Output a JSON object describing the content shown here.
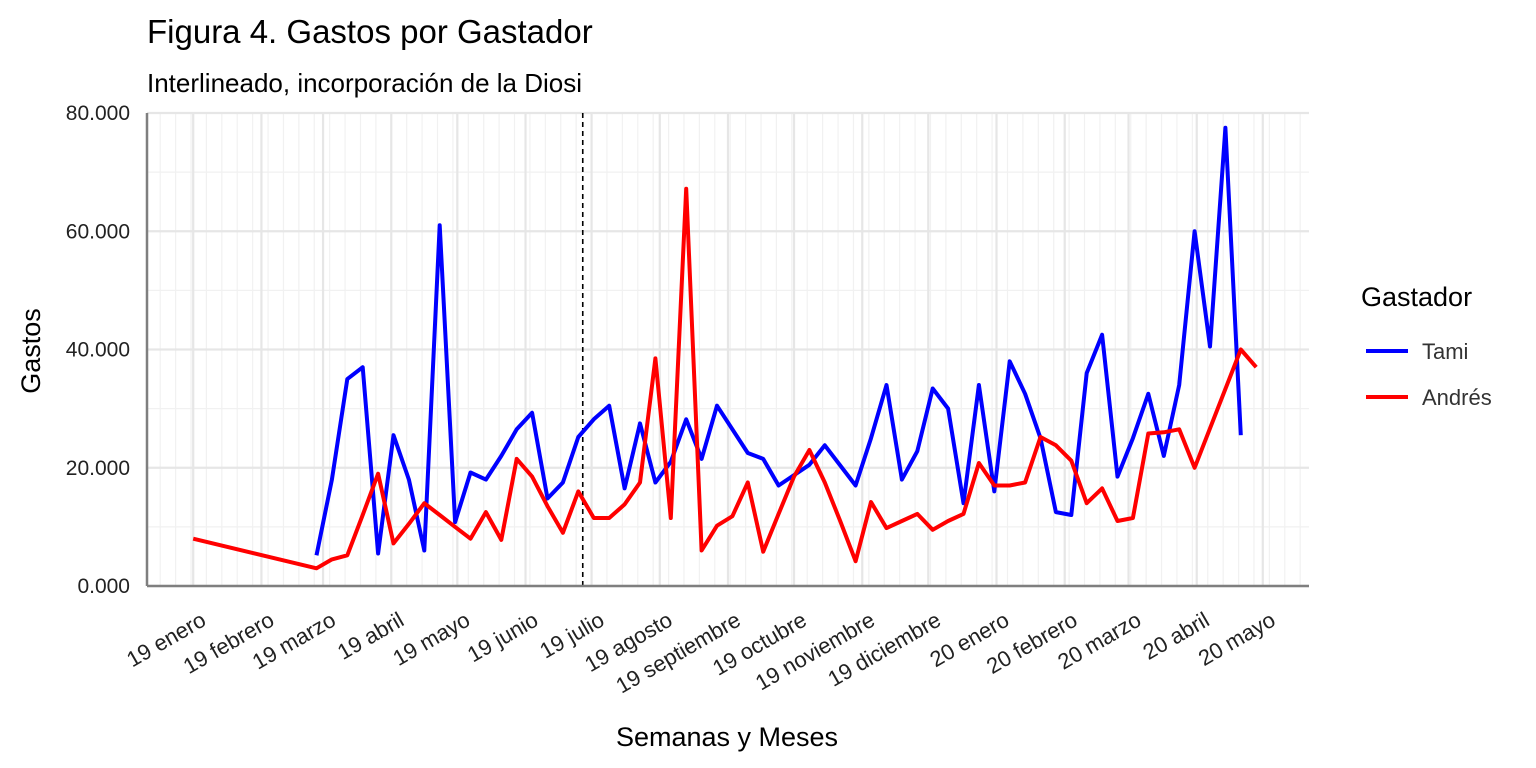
{
  "chart_data": {
    "type": "line",
    "title": "Figura 4. Gastos por Gastador",
    "subtitle": "Interlineado, incorporación de la Diosi",
    "xlabel": "Semanas y Meses",
    "ylabel": "Gastos",
    "x_axis": "date",
    "xlim": [
      "2018-12-11",
      "2020-05-22"
    ],
    "ylim": [
      0,
      80000
    ],
    "y_ticks": [
      0,
      20000,
      40000,
      60000,
      80000
    ],
    "y_tick_labels": [
      "0.000",
      "20.000",
      "40.000",
      "60.000",
      "80.000"
    ],
    "x_ticks": [
      "2019-01-01",
      "2019-02-01",
      "2019-03-01",
      "2019-04-01",
      "2019-05-01",
      "2019-06-01",
      "2019-07-01",
      "2019-08-01",
      "2019-09-01",
      "2019-10-01",
      "2019-11-01",
      "2019-12-01",
      "2020-01-01",
      "2020-02-01",
      "2020-03-01",
      "2020-04-01",
      "2020-05-01"
    ],
    "x_tick_labels": [
      "19 enero",
      "19 febrero",
      "19 marzo",
      "19 abril",
      "19 mayo",
      "19 junio",
      "19 julio",
      "19 agosto",
      "19 septiembre",
      "19 octubre",
      "19 noviembre",
      "19 diciembre",
      "20 enero",
      "20 febrero",
      "20 marzo",
      "20 abril",
      "20 mayo"
    ],
    "vline": "2019-06-27",
    "grid": true,
    "legend": {
      "title": "Gastador",
      "position": "right"
    },
    "series": [
      {
        "name": "Tami",
        "color": "#0000ff",
        "x": [
          "2019-02-26",
          "2019-03-05",
          "2019-03-12",
          "2019-03-19",
          "2019-03-26",
          "2019-04-02",
          "2019-04-09",
          "2019-04-16",
          "2019-04-23",
          "2019-04-30",
          "2019-05-07",
          "2019-05-14",
          "2019-05-21",
          "2019-05-28",
          "2019-06-04",
          "2019-06-11",
          "2019-06-18",
          "2019-06-25",
          "2019-07-02",
          "2019-07-09",
          "2019-07-16",
          "2019-07-23",
          "2019-07-30",
          "2019-08-06",
          "2019-08-13",
          "2019-08-20",
          "2019-08-27",
          "2019-09-10",
          "2019-09-17",
          "2019-09-24",
          "2019-10-08",
          "2019-10-15",
          "2019-10-29",
          "2019-11-05",
          "2019-11-12",
          "2019-11-19",
          "2019-11-26",
          "2019-12-03",
          "2019-12-10",
          "2019-12-17",
          "2019-12-24",
          "2019-12-31",
          "2020-01-07",
          "2020-01-14",
          "2020-01-21",
          "2020-01-28",
          "2020-02-04",
          "2020-02-11",
          "2020-02-18",
          "2020-02-25",
          "2020-03-03",
          "2020-03-10",
          "2020-03-17",
          "2020-03-24",
          "2020-03-31",
          "2020-04-07",
          "2020-04-14",
          "2020-04-21"
        ],
        "y": [
          5200,
          18000,
          35000,
          37000,
          5500,
          25500,
          18000,
          6000,
          61000,
          10800,
          19200,
          18000,
          22000,
          26500,
          29300,
          14800,
          17500,
          25200,
          28200,
          30500,
          16500,
          27500,
          17500,
          21000,
          28200,
          21500,
          30500,
          22500,
          21500,
          17000,
          20500,
          23800,
          17000,
          25000,
          34000,
          18000,
          22800,
          33400,
          30000,
          14000,
          34000,
          16000,
          38000,
          32500,
          25000,
          12500,
          12000,
          36000,
          42500,
          18500,
          25000,
          32500,
          22000,
          34000,
          60000,
          40500,
          77500,
          25500
        ]
      },
      {
        "name": "Andrés",
        "color": "#ff0000",
        "x": [
          "2019-01-01",
          "2019-02-26",
          "2019-03-05",
          "2019-03-12",
          "2019-03-19",
          "2019-03-26",
          "2019-04-02",
          "2019-04-09",
          "2019-04-16",
          "2019-04-23",
          "2019-04-30",
          "2019-05-07",
          "2019-05-14",
          "2019-05-21",
          "2019-05-28",
          "2019-06-04",
          "2019-06-11",
          "2019-06-18",
          "2019-06-25",
          "2019-07-02",
          "2019-07-09",
          "2019-07-16",
          "2019-07-23",
          "2019-07-30",
          "2019-08-06",
          "2019-08-13",
          "2019-08-20",
          "2019-08-27",
          "2019-09-03",
          "2019-09-10",
          "2019-09-17",
          "2019-09-24",
          "2019-10-01",
          "2019-10-08",
          "2019-10-15",
          "2019-10-22",
          "2019-10-29",
          "2019-11-05",
          "2019-11-12",
          "2019-11-19",
          "2019-11-26",
          "2019-12-03",
          "2019-12-10",
          "2019-12-17",
          "2019-12-24",
          "2019-12-31",
          "2020-01-07",
          "2020-01-14",
          "2020-01-21",
          "2020-01-28",
          "2020-02-04",
          "2020-02-11",
          "2020-02-18",
          "2020-02-25",
          "2020-03-03",
          "2020-03-10",
          "2020-03-17",
          "2020-03-24",
          "2020-03-31",
          "2020-04-21",
          "2020-04-28"
        ],
        "y": [
          8000,
          3000,
          4500,
          5200,
          12000,
          19000,
          7200,
          10500,
          14000,
          12000,
          10000,
          8000,
          12500,
          7800,
          21500,
          18500,
          13500,
          9000,
          16000,
          11500,
          11500,
          13800,
          17500,
          38500,
          11500,
          67200,
          6000,
          10200,
          11800,
          17500,
          5800,
          12200,
          18500,
          23000,
          17500,
          11000,
          4200,
          14200,
          9800,
          11000,
          12200,
          9500,
          11000,
          12200,
          20800,
          17000,
          17000,
          17500,
          25200,
          23800,
          21200,
          14000,
          16500,
          11000,
          11500,
          25800,
          26000,
          26500,
          20000,
          40000,
          37000
        ]
      }
    ]
  }
}
